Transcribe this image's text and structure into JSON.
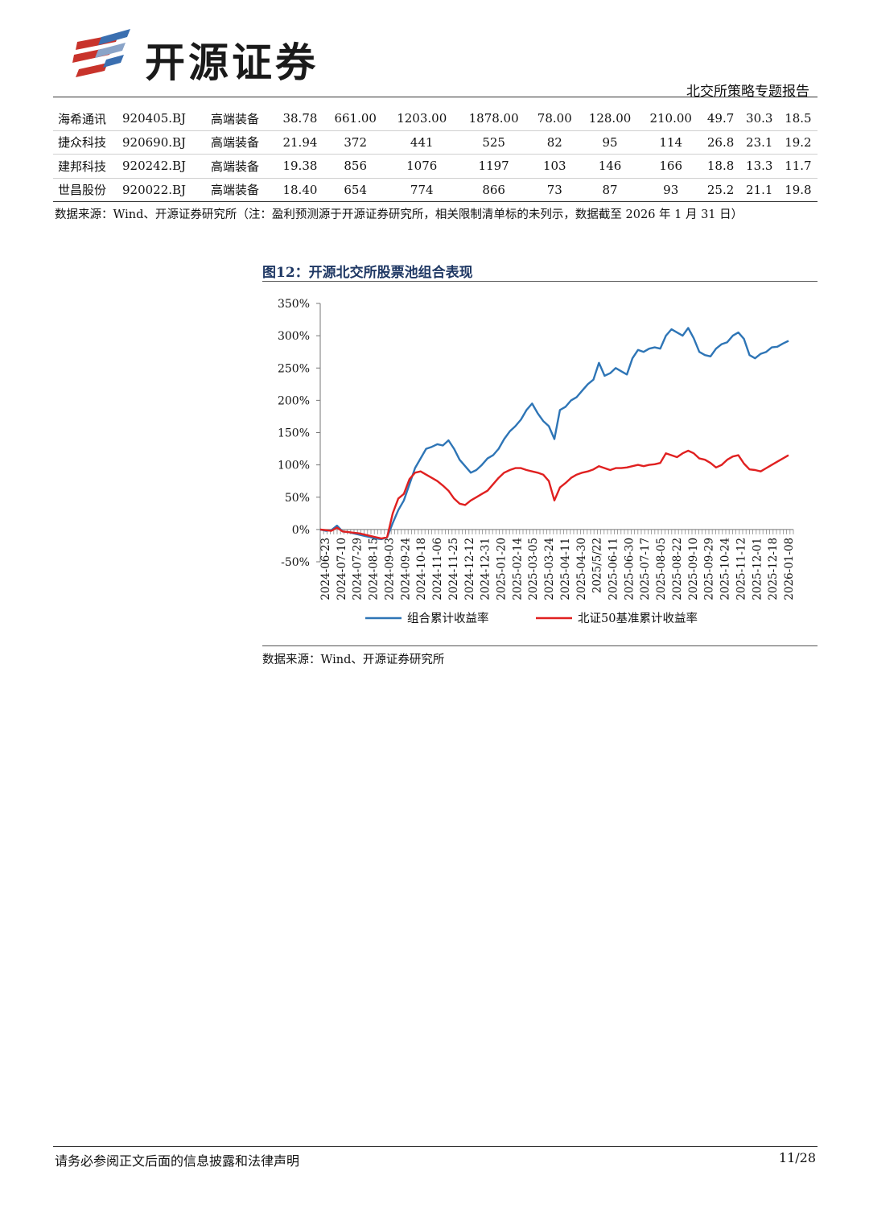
{
  "header": {
    "logo_text": "开源证券",
    "report_type": "北交所策略专题报告",
    "brand_colors": {
      "red": "#c8332b",
      "blue": "#3a6fb0"
    }
  },
  "table": {
    "rows": [
      [
        "海希通讯",
        "920405.BJ",
        "高端装备",
        "38.78",
        "661.00",
        "1203.00",
        "1878.00",
        "78.00",
        "128.00",
        "210.00",
        "49.7",
        "30.3",
        "18.5"
      ],
      [
        "捷众科技",
        "920690.BJ",
        "高端装备",
        "21.94",
        "372",
        "441",
        "525",
        "82",
        "95",
        "114",
        "26.8",
        "23.1",
        "19.2"
      ],
      [
        "建邦科技",
        "920242.BJ",
        "高端装备",
        "19.38",
        "856",
        "1076",
        "1197",
        "103",
        "146",
        "166",
        "18.8",
        "13.3",
        "11.7"
      ],
      [
        "世昌股份",
        "920022.BJ",
        "高端装备",
        "18.40",
        "654",
        "774",
        "866",
        "73",
        "87",
        "93",
        "25.2",
        "21.1",
        "19.8"
      ]
    ],
    "source": "数据来源：Wind、开源证券研究所（注：盈利预测源于开源证券研究所，相关限制清单标的未列示，数据截至 2026 年 1 月 31 日）"
  },
  "figure": {
    "label": "图12：",
    "title": "开源北交所股票池组合表现",
    "source": "数据来源：Wind、开源证券研究所"
  },
  "chart_data": {
    "type": "line",
    "title": "开源北交所股票池组合表现",
    "ylim": [
      -50,
      350
    ],
    "yticks": [
      -50,
      0,
      50,
      100,
      150,
      200,
      250,
      300,
      350
    ],
    "ytick_labels": [
      "-50%",
      "0%",
      "50%",
      "100%",
      "150%",
      "200%",
      "250%",
      "300%",
      "350%"
    ],
    "x_tick_labels": [
      "2024-06-23",
      "2024-07-10",
      "2024-07-29",
      "2024-08-15",
      "2024-09-03",
      "2024-09-24",
      "2024-10-18",
      "2024-11-06",
      "2024-11-25",
      "2024-12-12",
      "2024-12-31",
      "2025-01-20",
      "2025-02-14",
      "2025-03-05",
      "2025-03-24",
      "2025-04-11",
      "2025-04-30",
      "2025/5/22",
      "2025-06-11",
      "2025-06-30",
      "2025-07-17",
      "2025-08-05",
      "2025-08-22",
      "2025-09-10",
      "2025-09-29",
      "2025-10-24",
      "2025-11-12",
      "2025-12-01",
      "2025-12-18",
      "2026-01-08"
    ],
    "legend_position": "bottom",
    "series": [
      {
        "name": "组合累计收益率",
        "color": "#2e75b6",
        "values": [
          0,
          -2,
          -1,
          6,
          -3,
          -4,
          -6,
          -8,
          -10,
          -12,
          -14,
          -15,
          -12,
          10,
          30,
          45,
          70,
          95,
          110,
          125,
          128,
          132,
          130,
          138,
          125,
          108,
          98,
          88,
          92,
          100,
          110,
          115,
          125,
          140,
          152,
          160,
          170,
          185,
          195,
          180,
          168,
          160,
          140,
          185,
          190,
          200,
          205,
          215,
          225,
          232,
          258,
          238,
          242,
          250,
          245,
          240,
          265,
          278,
          275,
          280,
          282,
          280,
          300,
          310,
          305,
          300,
          312,
          296,
          275,
          270,
          268,
          280,
          287,
          290,
          300,
          305,
          295,
          270,
          265,
          272,
          275,
          282,
          283,
          288,
          292
        ]
      },
      {
        "name": "北证50基准累计收益率",
        "color": "#e02020",
        "values": [
          0,
          -1,
          -2,
          3,
          -3,
          -4,
          -5,
          -6,
          -8,
          -10,
          -12,
          -14,
          -12,
          25,
          48,
          55,
          78,
          88,
          90,
          85,
          80,
          75,
          68,
          60,
          48,
          40,
          38,
          45,
          50,
          55,
          60,
          70,
          80,
          88,
          92,
          95,
          95,
          92,
          90,
          88,
          85,
          75,
          45,
          65,
          72,
          80,
          85,
          88,
          90,
          93,
          98,
          95,
          92,
          95,
          95,
          96,
          98,
          100,
          98,
          100,
          101,
          103,
          118,
          115,
          112,
          118,
          122,
          118,
          110,
          108,
          103,
          96,
          100,
          108,
          113,
          115,
          102,
          93,
          92,
          90,
          95,
          100,
          105,
          110,
          115
        ]
      }
    ]
  },
  "footer": {
    "disclaimer": "请务必参阅正文后面的信息披露和法律声明",
    "page": "11/28"
  }
}
